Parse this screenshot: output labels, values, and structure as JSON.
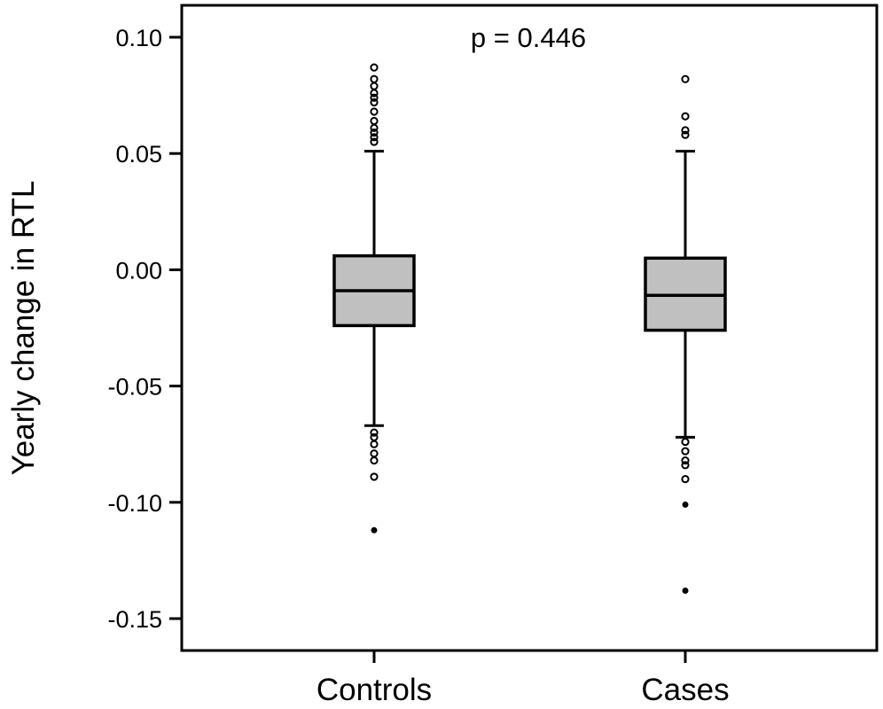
{
  "chart_data": {
    "type": "box",
    "title": "",
    "ylabel": "Yearly change in RTL",
    "xlabel": "",
    "ylim": [
      -0.165,
      0.115
    ],
    "yticks": [
      0.1,
      0.05,
      0.0,
      -0.05,
      -0.1,
      -0.15
    ],
    "ytick_labels": [
      "0.10",
      "0.05",
      "0.00",
      "-0.05",
      "-0.10",
      "-0.15"
    ],
    "annotation": "p = 0.446",
    "grid": false,
    "colors": {
      "box_fill": "#c0c0c0",
      "stroke": "#000000"
    },
    "groups": [
      {
        "label": "Controls",
        "whisker_low": -0.067,
        "q1": -0.024,
        "median": -0.009,
        "q3": 0.006,
        "whisker_high": 0.051,
        "outliers": [
          0.087,
          0.082,
          0.079,
          0.076,
          0.074,
          0.072,
          0.068,
          0.064,
          0.061,
          0.059,
          0.057,
          0.055,
          -0.07,
          -0.072,
          -0.075,
          -0.079,
          -0.082,
          -0.089,
          -0.112
        ]
      },
      {
        "label": "Cases",
        "whisker_low": -0.072,
        "q1": -0.026,
        "median": -0.011,
        "q3": 0.005,
        "whisker_high": 0.051,
        "outliers": [
          0.082,
          0.066,
          0.06,
          0.058,
          -0.074,
          -0.078,
          -0.082,
          -0.084,
          -0.09,
          -0.101,
          -0.138
        ]
      }
    ]
  }
}
